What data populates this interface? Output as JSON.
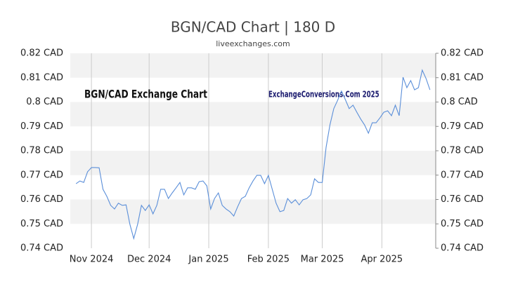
{
  "chart_data": {
    "type": "line",
    "title": "BGN/CAD Chart | 180 D",
    "subtitle": "liveexchanges.com",
    "annotations": [
      "BGN/CAD Exchange Chart",
      "ExchangeConversions.Com 2025"
    ],
    "x": [
      0,
      2,
      4,
      6,
      8,
      10,
      12,
      14,
      16,
      18,
      20,
      22,
      24,
      26,
      28,
      30,
      32,
      34,
      36,
      38,
      40,
      42,
      44,
      46,
      48,
      50,
      52,
      54,
      56,
      58,
      60,
      62,
      64,
      66,
      68,
      70,
      72,
      74,
      76,
      78,
      80,
      82,
      84,
      86,
      88,
      90,
      92,
      94,
      96,
      98,
      100,
      102,
      104,
      106,
      108,
      110,
      112,
      114,
      116,
      118,
      120,
      122,
      124,
      126,
      128,
      130,
      132,
      134,
      136,
      138,
      140,
      142,
      144,
      146,
      148,
      150,
      152,
      154,
      156,
      158,
      160,
      162,
      164,
      166,
      168,
      170,
      172,
      174,
      176,
      178,
      180,
      182,
      184
    ],
    "series": [
      {
        "name": "BGN/CAD",
        "color": "#5b8fd9",
        "values": [
          0.7665,
          0.7676,
          0.767,
          0.7714,
          0.7731,
          0.7731,
          0.773,
          0.7642,
          0.7613,
          0.7576,
          0.7561,
          0.7585,
          0.7576,
          0.7578,
          0.7498,
          0.744,
          0.7498,
          0.7576,
          0.7555,
          0.7578,
          0.7541,
          0.7576,
          0.7642,
          0.7642,
          0.7604,
          0.7627,
          0.7648,
          0.767,
          0.7619,
          0.7648,
          0.7648,
          0.7642,
          0.7673,
          0.7676,
          0.7656,
          0.7561,
          0.7604,
          0.7627,
          0.7576,
          0.7561,
          0.755,
          0.7532,
          0.757,
          0.7604,
          0.7613,
          0.7648,
          0.7676,
          0.7699,
          0.7699,
          0.7665,
          0.7699,
          0.7642,
          0.7585,
          0.755,
          0.7555,
          0.7604,
          0.7585,
          0.7599,
          0.7578,
          0.7599,
          0.7604,
          0.7619,
          0.7685,
          0.767,
          0.767,
          0.7814,
          0.7906,
          0.7973,
          0.8007,
          0.8045,
          0.801,
          0.7973,
          0.7987,
          0.7958,
          0.793,
          0.7906,
          0.7872,
          0.7915,
          0.7915,
          0.7935,
          0.7958,
          0.7964,
          0.7944,
          0.7987,
          0.7944,
          0.8102,
          0.8059,
          0.8088,
          0.805,
          0.8059,
          0.8131,
          0.8096,
          0.805
        ]
      }
    ],
    "xlim": [
      -3,
      187
    ],
    "xticks": [
      {
        "value": 8,
        "label": "Nov 2024"
      },
      {
        "value": 38,
        "label": "Dec 2024"
      },
      {
        "value": 69,
        "label": "Jan 2025"
      },
      {
        "value": 100,
        "label": "Feb 2025"
      },
      {
        "value": 128,
        "label": "Mar 2025"
      },
      {
        "value": 159,
        "label": "Apr 2025"
      }
    ],
    "ylim": [
      0.74,
      0.82
    ],
    "yticks": [
      {
        "value": 0.74,
        "label": "0.74 CAD"
      },
      {
        "value": 0.75,
        "label": "0.75 CAD"
      },
      {
        "value": 0.76,
        "label": "0.76 CAD"
      },
      {
        "value": 0.77,
        "label": "0.77 CAD"
      },
      {
        "value": 0.78,
        "label": "0.78 CAD"
      },
      {
        "value": 0.79,
        "label": "0.79 CAD"
      },
      {
        "value": 0.8,
        "label": "0.8 CAD"
      },
      {
        "value": 0.81,
        "label": "0.81 CAD"
      },
      {
        "value": 0.82,
        "label": "0.82 CAD"
      }
    ],
    "grid": true,
    "bands": true
  }
}
